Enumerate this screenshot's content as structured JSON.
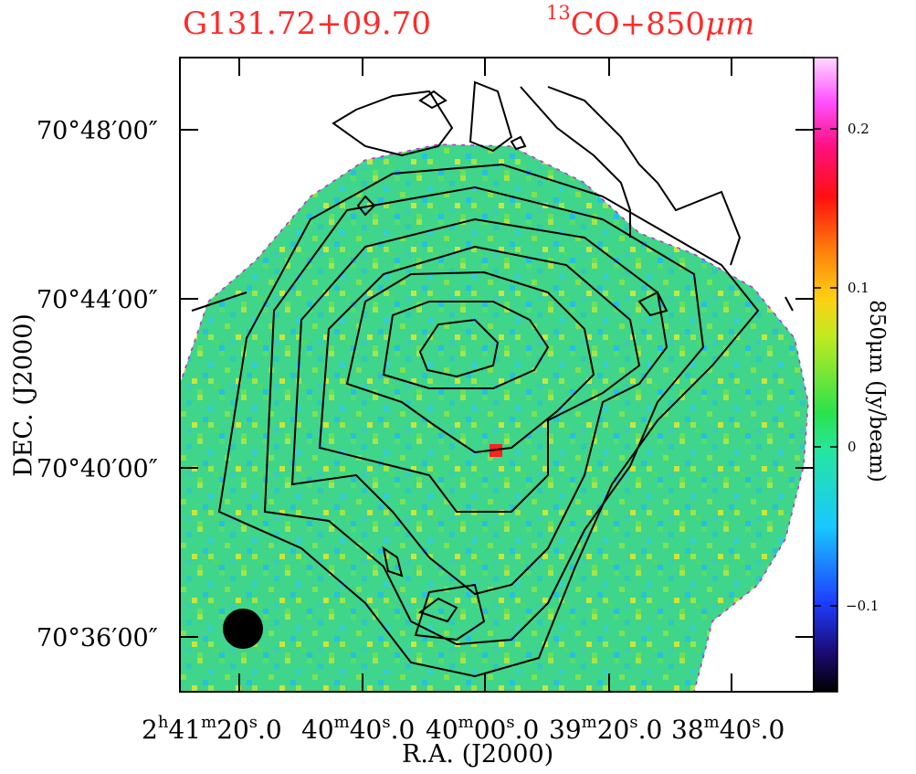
{
  "title": {
    "source": "G131.72+09.70",
    "band_sup": "13",
    "band": "CO+850",
    "band_unit": "μm"
  },
  "axes": {
    "xlabel": "R.A. (J2000)",
    "ylabel": "DEC. (J2000)",
    "colorbar_label": "850μm (Jy/beam)"
  },
  "ra_ticks": [
    {
      "h": "2",
      "hu": "h",
      "m": "41",
      "mu": "m",
      "s": "20",
      "su": "s",
      "frac": ".0"
    },
    {
      "h": "",
      "hu": "",
      "m": "40",
      "mu": "m",
      "s": "40",
      "su": "s",
      "frac": ".0"
    },
    {
      "h": "",
      "hu": "",
      "m": "40",
      "mu": "m",
      "s": "00",
      "su": "s",
      "frac": ".0"
    },
    {
      "h": "",
      "hu": "",
      "m": "39",
      "mu": "m",
      "s": "20",
      "su": "s",
      "frac": ".0"
    },
    {
      "h": "",
      "hu": "",
      "m": "38",
      "mu": "m",
      "s": "40",
      "su": "s",
      "frac": ".0"
    }
  ],
  "dec_ticks": [
    "70°48′00″",
    "70°44′00″",
    "70°40′00″",
    "70°36′00″"
  ],
  "colorbar_ticks": [
    "0.2",
    "0.1",
    "0",
    "−0.1"
  ],
  "colorbar_range": [
    -0.15,
    0.25
  ],
  "colors": {
    "title": "#ff2a2a",
    "map_base": "#3fd58a",
    "beam": "#000000"
  },
  "beam_marker": "filled-circle"
}
